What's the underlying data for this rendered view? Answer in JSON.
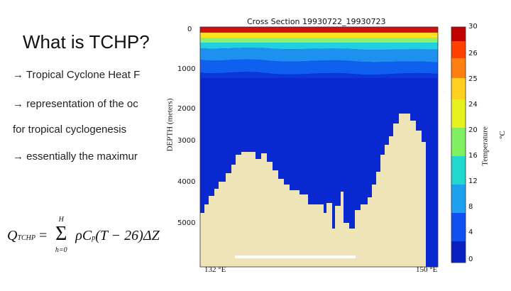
{
  "slide": {
    "title": "What is TCHP?",
    "bullets": [
      "→ Tropical Cyclone Heat F",
      "→ representation of the oc",
      "for tropical cyclogenesis",
      "→ essentially the maximur"
    ],
    "formula": {
      "lhs": "Q",
      "lhs_sub": "TCHP",
      "equals": "=",
      "sum_top": "H",
      "sum_bottom": "h=0",
      "body": "ρC",
      "body_sub": "p",
      "rest": "(T − 26)ΔZ"
    }
  },
  "figure": {
    "title": "Cross Section 19930722_19930723",
    "y_axis_label": "DEPTH (meters)",
    "y_ticks": [
      "0",
      "1000",
      "2000",
      "3000",
      "4000",
      "5000"
    ],
    "x_ticks": [
      "132 °E",
      "150 °E"
    ],
    "colorbar_label": "Temperature",
    "colorbar_unit": "°C",
    "colorbar_ticks": [
      "30",
      "26",
      "25",
      "24",
      "20",
      "16",
      "12",
      "8",
      "4",
      "0"
    ],
    "colors": {
      "deep_water": "#0a28d0",
      "seafloor": "#efe4b8",
      "surface": [
        "#d01010",
        "#ff7a10",
        "#ffe020",
        "#8ff070",
        "#20d0e0",
        "#1e90f0",
        "#1060f0",
        "#0a36dc"
      ]
    }
  }
}
